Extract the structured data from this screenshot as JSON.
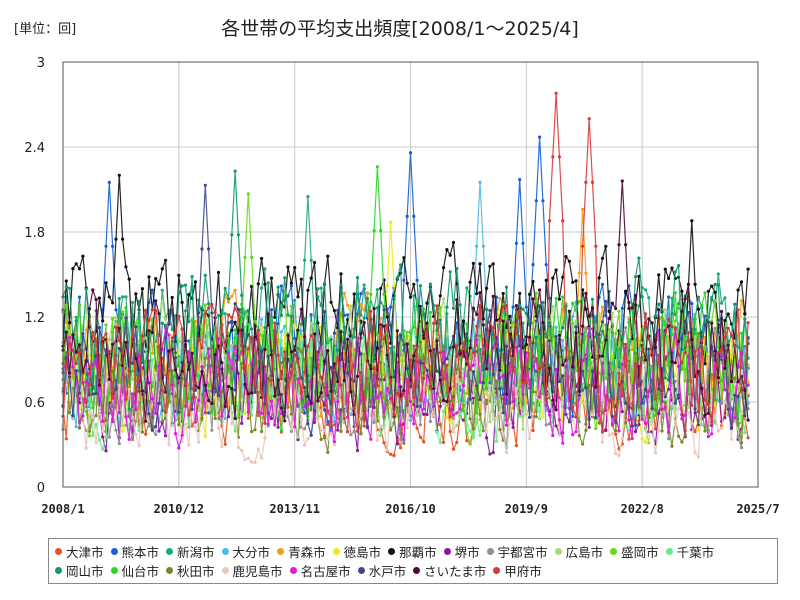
{
  "chart_data": {
    "type": "line",
    "title": "各世帯の平均支出頻度[2008/1～2025/4]",
    "unit_label": "[単位：回]",
    "xlabel": "",
    "ylabel": "",
    "x_range": [
      "2008/1",
      "2025/7"
    ],
    "ylim": [
      0,
      3
    ],
    "y_ticks": [
      "0",
      "0.6",
      "1.2",
      "1.8",
      "2.4",
      "3"
    ],
    "y_tick_values": [
      0,
      0.6,
      1.2,
      1.8,
      2.4,
      3
    ],
    "x_ticks": [
      "2008/1",
      "2010/12",
      "2013/11",
      "2016/10",
      "2019/9",
      "2022/8",
      "2025/7"
    ],
    "x_tick_months": [
      0,
      35,
      70,
      105,
      140,
      175,
      210
    ],
    "last_month": 207,
    "grid": true,
    "legend_position": "bottom",
    "series": [
      {
        "name": "大津市",
        "color": "#e8501c",
        "seed": 1,
        "base": 0.62,
        "amp": 0.28,
        "spikes": []
      },
      {
        "name": "熊本市",
        "color": "#1060d8",
        "seed": 2,
        "base": 0.95,
        "amp": 0.4,
        "spikes": [
          [
            14,
            2.15
          ],
          [
            105,
            2.36
          ],
          [
            138,
            2.17
          ],
          [
            144,
            2.47
          ]
        ]
      },
      {
        "name": "新潟市",
        "color": "#20a878",
        "seed": 3,
        "base": 0.98,
        "amp": 0.42,
        "spikes": [
          [
            74,
            2.05
          ]
        ]
      },
      {
        "name": "大分市",
        "color": "#50b8e8",
        "seed": 4,
        "base": 0.82,
        "amp": 0.36,
        "spikes": [
          [
            126,
            2.15
          ]
        ]
      },
      {
        "name": "青森市",
        "color": "#f0a018",
        "seed": 5,
        "base": 0.9,
        "amp": 0.38,
        "spikes": [
          [
            157,
            1.96
          ]
        ]
      },
      {
        "name": "徳島市",
        "color": "#f0e818",
        "seed": 6,
        "base": 0.78,
        "amp": 0.36,
        "spikes": [
          [
            99,
            1.87
          ]
        ]
      },
      {
        "name": "那覇市",
        "color": "#101010",
        "seed": 7,
        "base": 1.25,
        "amp": 0.35,
        "spikes": [
          [
            17,
            2.2
          ],
          [
            31,
            1.6
          ],
          [
            190,
            1.88
          ]
        ]
      },
      {
        "name": "堺市",
        "color": "#8818a0",
        "seed": 8,
        "base": 0.62,
        "amp": 0.3,
        "spikes": []
      },
      {
        "name": "宇都宮市",
        "color": "#909098",
        "seed": 9,
        "base": 0.72,
        "amp": 0.34,
        "spikes": []
      },
      {
        "name": "広島市",
        "color": "#a8d878",
        "seed": 10,
        "base": 0.82,
        "amp": 0.38,
        "spikes": []
      },
      {
        "name": "盛岡市",
        "color": "#68d818",
        "seed": 11,
        "base": 0.88,
        "amp": 0.4,
        "spikes": [
          [
            56,
            2.07
          ]
        ]
      },
      {
        "name": "千葉市",
        "color": "#70e888",
        "seed": 12,
        "base": 0.74,
        "amp": 0.36,
        "spikes": []
      },
      {
        "name": "岡山市",
        "color": "#109870",
        "seed": 13,
        "base": 1.05,
        "amp": 0.42,
        "spikes": [
          [
            52,
            2.23
          ]
        ]
      },
      {
        "name": "仙台市",
        "color": "#28d828",
        "seed": 14,
        "base": 0.92,
        "amp": 0.4,
        "spikes": [
          [
            95,
            2.26
          ]
        ]
      },
      {
        "name": "秋田市",
        "color": "#788828",
        "seed": 15,
        "base": 0.7,
        "amp": 0.34,
        "spikes": []
      },
      {
        "name": "鹿児島市",
        "color": "#e8c8b8",
        "seed": 16,
        "base": 0.62,
        "amp": 0.32,
        "spikes": []
      },
      {
        "name": "名古屋市",
        "color": "#e018e0",
        "seed": 17,
        "base": 0.7,
        "amp": 0.34,
        "spikes": []
      },
      {
        "name": "水戸市",
        "color": "#404888",
        "seed": 18,
        "base": 0.85,
        "amp": 0.36,
        "spikes": [
          [
            43,
            2.13
          ]
        ]
      },
      {
        "name": "さいたま市",
        "color": "#500838",
        "seed": 19,
        "base": 0.92,
        "amp": 0.38,
        "spikes": [
          [
            169,
            2.16
          ]
        ]
      },
      {
        "name": "甲府市",
        "color": "#d83838",
        "seed": 20,
        "base": 0.85,
        "amp": 0.36,
        "spikes": [
          [
            149,
            2.78
          ],
          [
            159,
            2.6
          ]
        ]
      }
    ]
  }
}
